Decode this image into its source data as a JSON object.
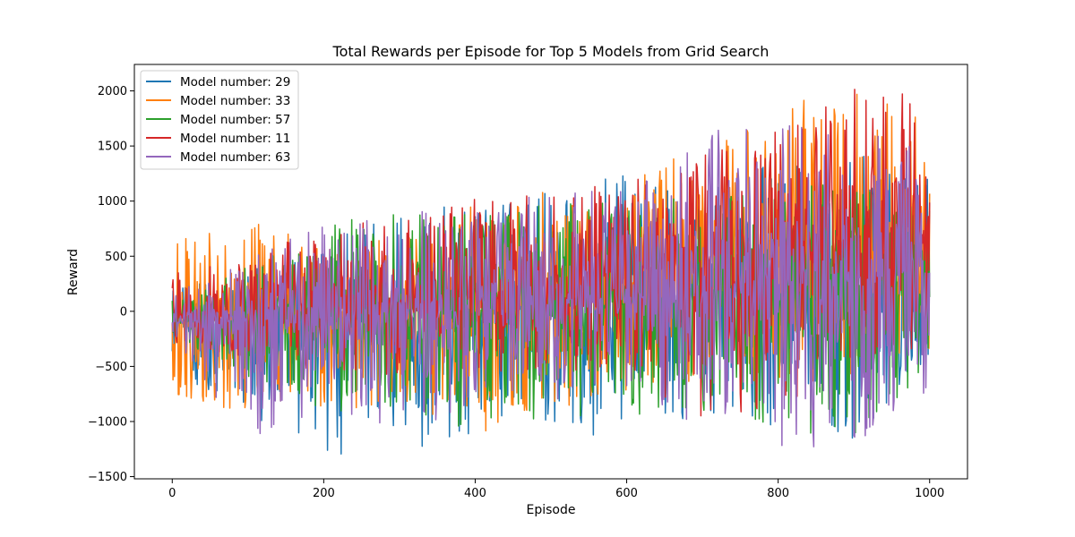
{
  "chart_data": {
    "type": "line",
    "title": "Total Rewards per Episode for Top 5 Models from Grid Search",
    "xlabel": "Episode",
    "ylabel": "Reward",
    "xlim": [
      -50,
      1050
    ],
    "ylim": [
      -1520,
      2240
    ],
    "xticks": [
      0,
      200,
      400,
      600,
      800,
      1000
    ],
    "yticks": [
      -1500,
      -1000,
      -500,
      0,
      500,
      1000,
      1500,
      2000
    ],
    "xtick_labels": [
      "0",
      "200",
      "400",
      "600",
      "800",
      "1000"
    ],
    "ytick_labels": [
      "−1500",
      "−1000",
      "−500",
      "0",
      "500",
      "1000",
      "1500",
      "2000"
    ],
    "grid": false,
    "legend_position": "upper left",
    "series": [
      {
        "name": "Model number: 29",
        "color": "#1f77b4",
        "x": [
          0,
          100,
          200,
          300,
          400,
          500,
          600,
          700,
          800,
          900,
          1000
        ],
        "center": [
          -120,
          -100,
          -120,
          -80,
          -40,
          20,
          80,
          120,
          160,
          200,
          220
        ],
        "lower": [
          -560,
          -950,
          -1290,
          -1340,
          -1100,
          -1000,
          -1260,
          -900,
          -1100,
          -1180,
          -400
        ],
        "upper": [
          200,
          360,
          640,
          920,
          1040,
          1100,
          1300,
          1200,
          1350,
          1400,
          1450
        ]
      },
      {
        "name": "Model number: 33",
        "color": "#ff7f0e",
        "x": [
          0,
          100,
          200,
          300,
          400,
          500,
          600,
          700,
          800,
          900,
          1000
        ],
        "center": [
          -80,
          -40,
          -30,
          20,
          60,
          120,
          220,
          300,
          380,
          450,
          500
        ],
        "lower": [
          -820,
          -900,
          -860,
          -900,
          -1180,
          -900,
          -800,
          -600,
          -700,
          -600,
          -400
        ],
        "upper": [
          680,
          820,
          620,
          700,
          1000,
          1100,
          1300,
          1450,
          1860,
          2030,
          1900
        ]
      },
      {
        "name": "Model number: 57",
        "color": "#2ca02c",
        "x": [
          0,
          100,
          200,
          300,
          400,
          500,
          600,
          700,
          800,
          900,
          1000
        ],
        "center": [
          -100,
          -80,
          -60,
          -20,
          0,
          40,
          80,
          100,
          120,
          140,
          160
        ],
        "lower": [
          -300,
          -600,
          -900,
          -950,
          -1100,
          -950,
          -950,
          -1000,
          -1050,
          -1220,
          -600
        ],
        "upper": [
          150,
          400,
          820,
          900,
          900,
          1000,
          1000,
          1100,
          1100,
          1200,
          1000
        ]
      },
      {
        "name": "Model number: 11",
        "color": "#d62728",
        "x": [
          0,
          100,
          200,
          300,
          400,
          500,
          600,
          700,
          800,
          900,
          1000
        ],
        "center": [
          -60,
          -20,
          20,
          80,
          160,
          260,
          380,
          480,
          580,
          660,
          720
        ],
        "lower": [
          -300,
          -450,
          -550,
          -600,
          -600,
          -500,
          -600,
          -1020,
          -900,
          -500,
          -300
        ],
        "upper": [
          350,
          500,
          750,
          930,
          1040,
          1070,
          1200,
          1450,
          1650,
          2090,
          1970
        ]
      },
      {
        "name": "Model number: 63",
        "color": "#9467bd",
        "x": [
          0,
          100,
          200,
          300,
          400,
          500,
          600,
          700,
          800,
          900,
          1000
        ],
        "center": [
          -100,
          -80,
          -60,
          -20,
          20,
          60,
          120,
          180,
          240,
          300,
          350
        ],
        "lower": [
          -300,
          -1200,
          -900,
          -1100,
          -900,
          -850,
          -800,
          -1100,
          -1230,
          -1240,
          -700
        ],
        "upper": [
          150,
          500,
          820,
          900,
          1000,
          1050,
          1200,
          1630,
          1700,
          1660,
          1600
        ]
      }
    ]
  }
}
